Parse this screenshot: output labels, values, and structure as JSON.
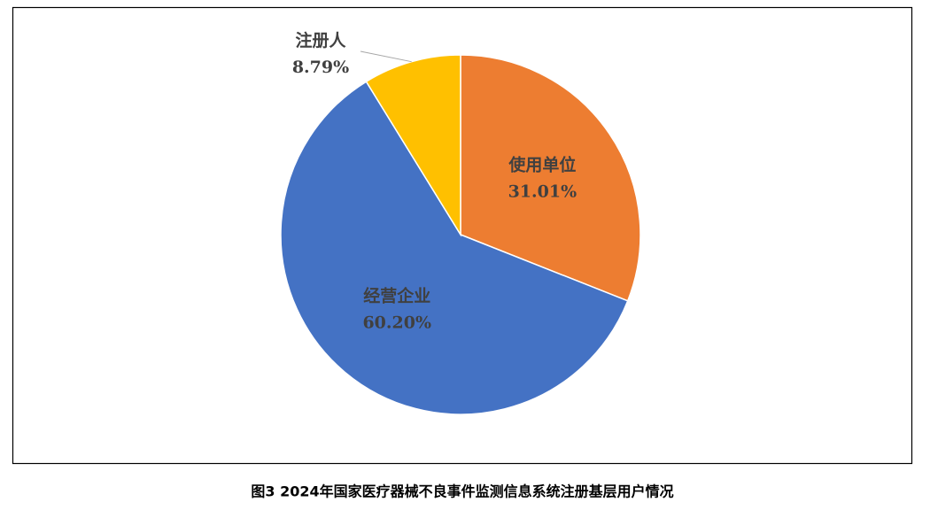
{
  "chart_data": {
    "type": "pie",
    "title": "图3 2024年国家医疗器械不良事件监测信息系统注册基层用户情况",
    "categories": [
      "使用单位",
      "经营企业",
      "注册人"
    ],
    "values": [
      31.01,
      60.2,
      8.79
    ],
    "value_labels": [
      "31.01%",
      "60.20%",
      "8.79%"
    ],
    "colors": [
      "#ED7D31",
      "#4472C4",
      "#FFC000"
    ]
  }
}
